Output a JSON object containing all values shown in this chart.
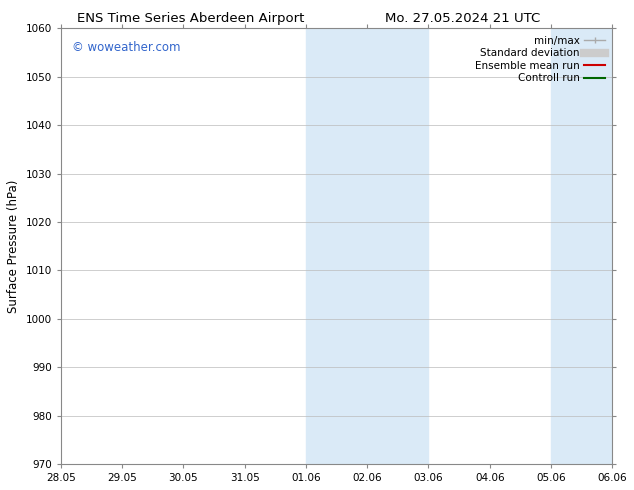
{
  "title_left": "ENS Time Series Aberdeen Airport",
  "title_right": "Mo. 27.05.2024 21 UTC",
  "ylabel": "Surface Pressure (hPa)",
  "ylim": [
    970,
    1060
  ],
  "yticks": [
    970,
    980,
    990,
    1000,
    1010,
    1020,
    1030,
    1040,
    1050,
    1060
  ],
  "xtick_labels": [
    "28.05",
    "29.05",
    "30.05",
    "31.05",
    "01.06",
    "02.06",
    "03.06",
    "04.06",
    "05.06",
    "06.06"
  ],
  "xtick_positions": [
    0,
    1,
    2,
    3,
    4,
    5,
    6,
    7,
    8,
    9
  ],
  "xlim": [
    0,
    9
  ],
  "shaded_regions": [
    {
      "x_start": 4,
      "x_end": 6
    },
    {
      "x_start": 8,
      "x_end": 9
    }
  ],
  "shaded_color": "#daeaf7",
  "watermark_text": "© woweather.com",
  "watermark_color": "#3366cc",
  "legend_items": [
    {
      "label": "min/max",
      "color": "#aaaaaa",
      "lw": 1.0
    },
    {
      "label": "Standard deviation",
      "color": "#cccccc",
      "lw": 6
    },
    {
      "label": "Ensemble mean run",
      "color": "#cc0000",
      "lw": 1.5
    },
    {
      "label": "Controll run",
      "color": "#006600",
      "lw": 1.5
    }
  ],
  "bg_color": "#ffffff",
  "grid_color": "#bbbbbb",
  "title_fontsize": 9.5,
  "tick_fontsize": 7.5,
  "ylabel_fontsize": 8.5,
  "legend_fontsize": 7.5,
  "watermark_fontsize": 8.5
}
